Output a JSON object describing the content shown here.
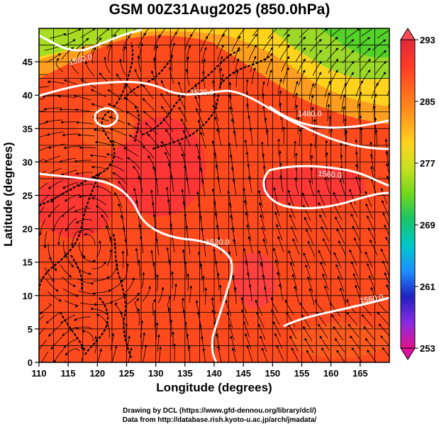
{
  "title": "GSM 00Z31Aug2025 (850.0hPa)",
  "xaxis": {
    "label": "Longitude (degrees)",
    "range": [
      110,
      170
    ],
    "ticks": [
      "110",
      "115",
      "120",
      "125",
      "130",
      "135",
      "140",
      "145",
      "150",
      "155",
      "160",
      "165"
    ]
  },
  "yaxis": {
    "label": "Latitude (degrees)",
    "range": [
      0,
      50
    ],
    "ticks": [
      "0",
      "5",
      "10",
      "15",
      "20",
      "25",
      "30",
      "35",
      "40",
      "45"
    ]
  },
  "colorbar": {
    "range": [
      253,
      293
    ],
    "labels": [
      "293",
      "285",
      "277",
      "269",
      "261",
      "253"
    ],
    "colors": [
      "#e4128a",
      "#8a2be2",
      "#2020c0",
      "#1e90ff",
      "#00c8c8",
      "#19c36a",
      "#6fd81c",
      "#c8e020",
      "#ffd21e",
      "#ff9a1e",
      "#ff6a1e",
      "#ff3a28",
      "#e0283a"
    ]
  },
  "contour_labels": [
    "1560.0",
    "1520.0",
    "1480.0",
    "1560.0",
    "1520.0",
    "1560.0"
  ],
  "credits": [
    "Drawing by DCL (https://www.gfd-dennou.org/library/dcl/)",
    "Data from http://database.rish.kyoto-u.ac.jp/arch/jmadata/"
  ],
  "colors": {
    "warm": "#ff4a1e",
    "hot": "#ff2a3c",
    "mid": "#ff8a1e",
    "yellow": "#ffc81e",
    "green": "#7ad82a",
    "grid": "#000000"
  }
}
